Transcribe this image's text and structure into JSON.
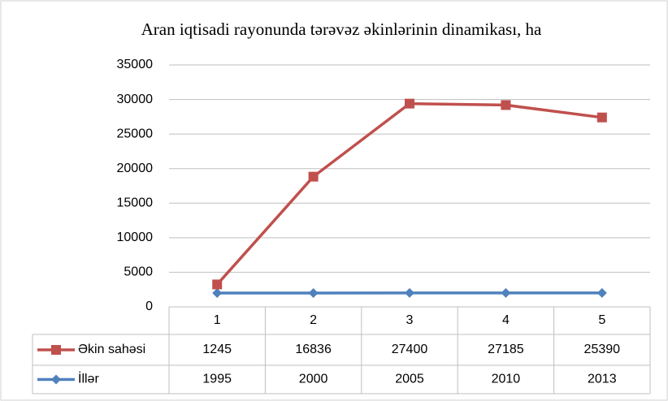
{
  "chart_data": {
    "type": "line",
    "stacked": true,
    "title": "Aran iqtisadi rayonunda tərəvəz əkinlərinin dinamikası, ha",
    "categories": [
      "1",
      "2",
      "3",
      "4",
      "5"
    ],
    "series": [
      {
        "name": "Əkin sahəsi",
        "color": "#c0504d",
        "marker": "square",
        "values": [
          1245,
          16836,
          27400,
          27185,
          25390
        ]
      },
      {
        "name": "İllər",
        "color": "#4f81bd",
        "marker": "diamond",
        "values": [
          1995,
          2000,
          2005,
          2010,
          2013
        ]
      }
    ],
    "ylim": [
      0,
      35000
    ],
    "yticks": [
      0,
      5000,
      10000,
      15000,
      20000,
      25000,
      30000,
      35000
    ],
    "grid": true,
    "data_table": true
  }
}
